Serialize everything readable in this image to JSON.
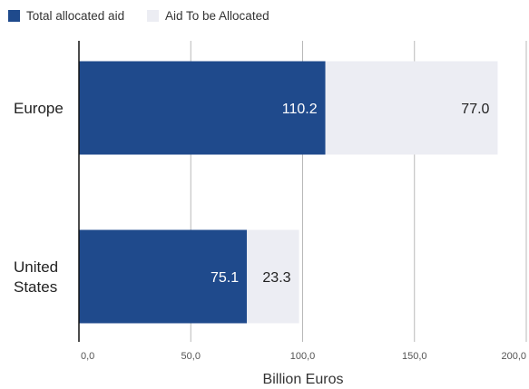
{
  "chart_data": {
    "type": "bar",
    "orientation": "horizontal",
    "stacked": true,
    "categories": [
      "Europe",
      "United States"
    ],
    "series": [
      {
        "name": "Total allocated aid",
        "values": [
          110.2,
          75.1
        ],
        "color": "#1f4a8c",
        "label_color": "#ffffff"
      },
      {
        "name": "Aid To be Allocated",
        "values": [
          77.0,
          23.3
        ],
        "color": "#ecedf3",
        "label_color": "#222222"
      }
    ],
    "value_labels": [
      [
        "110.2",
        "75.1"
      ],
      [
        "77.0",
        "23.3"
      ]
    ],
    "x_ticks": [
      {
        "value": 0,
        "label": "0,0"
      },
      {
        "value": 50,
        "label": "50,0"
      },
      {
        "value": 100,
        "label": "100,0"
      },
      {
        "value": 150,
        "label": "150,0"
      },
      {
        "value": 200,
        "label": "200,0"
      }
    ],
    "xlim": [
      0,
      200
    ],
    "xlabel": "Billion Euros",
    "ylabel": "",
    "grid": "vertical",
    "legend_position": "top-left"
  }
}
